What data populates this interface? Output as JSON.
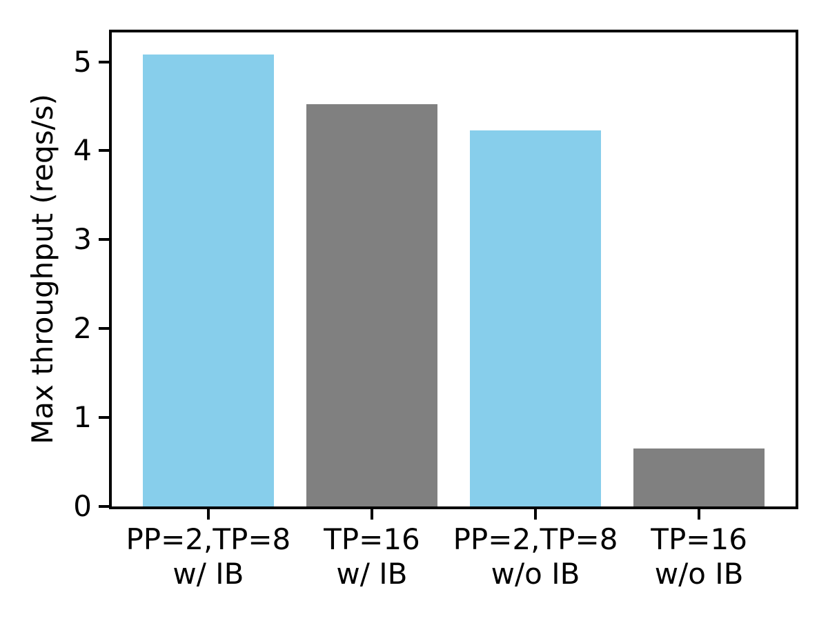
{
  "figure": {
    "background": "#ffffff"
  },
  "chart_data": {
    "type": "bar",
    "categories": [
      "PP=2,TP=8\nw/ IB",
      "TP=16\nw/ IB",
      "PP=2,TP=8\nw/o IB",
      "TP=16\nw/o IB"
    ],
    "values": [
      5.08,
      4.52,
      4.23,
      0.65
    ],
    "bar_colors": [
      "#87CEEB",
      "#808080",
      "#87CEEB",
      "#808080"
    ],
    "title": "",
    "xlabel": "",
    "ylabel": "Max throughput (reqs/s)",
    "yticks": [
      0,
      1,
      2,
      3,
      4,
      5
    ],
    "ytick_labels": [
      "0",
      "1",
      "2",
      "3",
      "4",
      "5"
    ],
    "ylim": [
      0,
      5.33
    ],
    "xlim": [
      -0.59,
      3.59
    ],
    "bar_width": 0.8,
    "grid": false,
    "legend_position": "none",
    "axis_color": "#000000",
    "text_color": "#000000"
  }
}
